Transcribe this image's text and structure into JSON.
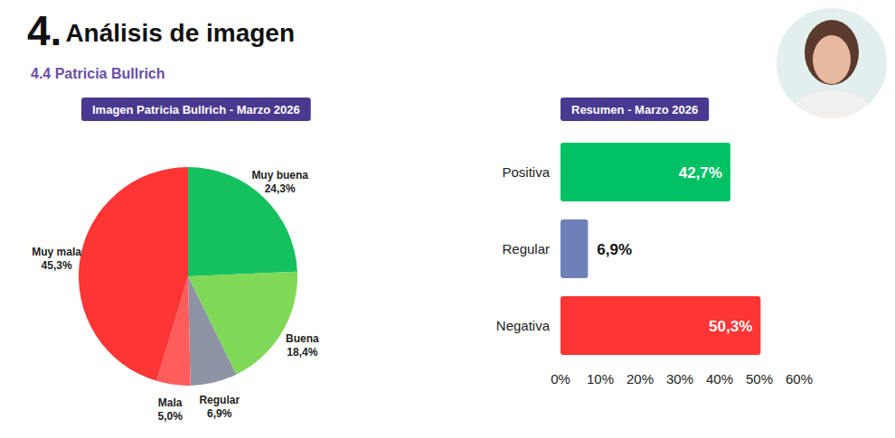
{
  "header": {
    "number": "4.",
    "title": "Análisis de imagen",
    "subtitle": "4.4 Patricia Bullrich"
  },
  "chart_data": [
    {
      "type": "pie",
      "title": "Imagen Patricia Bullrich - Marzo 2026",
      "categories": [
        "Muy buena",
        "Buena",
        "Regular",
        "Mala",
        "Muy mala"
      ],
      "values": [
        24.3,
        18.4,
        6.9,
        5.0,
        45.3
      ],
      "value_labels": [
        "24,3%",
        "18,4%",
        "6,9%",
        "5,0%",
        "45,3%"
      ],
      "colors": [
        "#14c15e",
        "#7fd957",
        "#8d93a4",
        "#ff5c5c",
        "#ff3434"
      ],
      "data_labels": true
    },
    {
      "type": "bar",
      "title": "Resumen - Marzo 2026",
      "orientation": "horizontal",
      "categories": [
        "Positiva",
        "Regular",
        "Negativa"
      ],
      "values": [
        42.7,
        6.9,
        50.3
      ],
      "value_labels": [
        "42,7%",
        "6,9%",
        "50,3%"
      ],
      "colors": [
        "#00c264",
        "#6f80b9",
        "#ff3434"
      ],
      "xlim": [
        0,
        60
      ],
      "xticks": [
        {
          "value": 0,
          "label": "0%"
        },
        {
          "value": 10,
          "label": "10%"
        },
        {
          "value": 20,
          "label": "20%"
        },
        {
          "value": 30,
          "label": "30%"
        },
        {
          "value": 40,
          "label": "40%"
        },
        {
          "value": 50,
          "label": "50%"
        },
        {
          "value": 60,
          "label": "60%"
        }
      ],
      "grid": false,
      "data_labels": true
    }
  ]
}
